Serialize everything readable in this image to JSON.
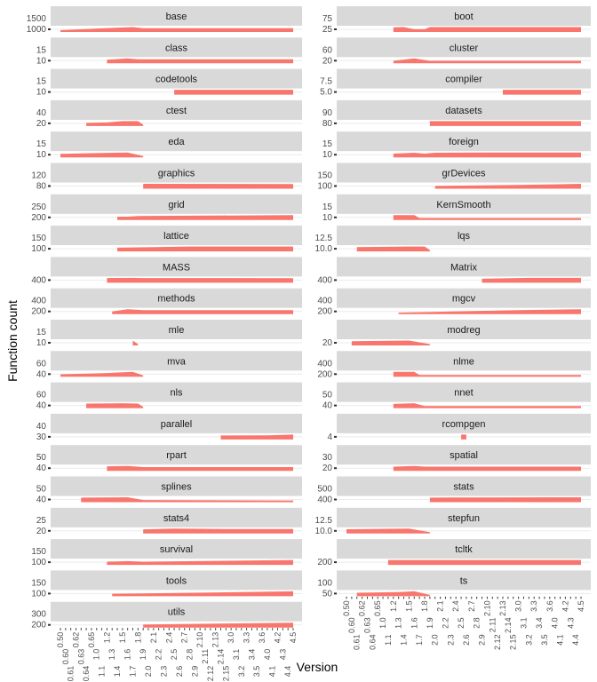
{
  "chart_data": {
    "type": "area",
    "xlabel": "Version",
    "ylabel": "Function count",
    "fill_color": "#F8766D",
    "strip_color": "#D9D9D9",
    "facet_layout": "2 columns, free y scales",
    "versions": [
      "0.50",
      "0.60",
      "0.61",
      "0.62",
      "0.63",
      "0.64",
      "0.65",
      "1.0",
      "1.1",
      "1.2",
      "1.3",
      "1.4",
      "1.5",
      "1.6",
      "1.7",
      "1.8",
      "1.9",
      "2.0",
      "2.1",
      "2.2",
      "2.3",
      "2.4",
      "2.5",
      "2.6",
      "2.7",
      "2.8",
      "2.9",
      "2.10",
      "2.11",
      "2.12",
      "2.13",
      "2.14",
      "2.15",
      "3.0",
      "3.1",
      "3.2",
      "3.3",
      "3.4",
      "3.5",
      "3.6",
      "4.0",
      "4.1",
      "4.2",
      "4.3",
      "4.4",
      "4.5"
    ],
    "panels": [
      {
        "name": "base",
        "yticks": [
          "1000",
          "1500"
        ],
        "points": [
          [
            "0.50",
            200
          ],
          [
            "1.0",
            900
          ],
          [
            "1.7",
            1500
          ],
          [
            "1.9",
            1000
          ],
          [
            "4.5",
            1050
          ]
        ]
      },
      {
        "name": "class",
        "yticks": [
          "10",
          "15"
        ],
        "points": [
          [
            "1.2",
            10
          ],
          [
            "1.6",
            16
          ],
          [
            "1.8",
            12
          ],
          [
            "4.5",
            12
          ]
        ]
      },
      {
        "name": "codetools",
        "yticks": [
          "10",
          "15"
        ],
        "points": [
          [
            "2.5",
            15
          ],
          [
            "4.5",
            15
          ]
        ]
      },
      {
        "name": "ctest",
        "yticks": [
          "20",
          "40"
        ],
        "points": [
          [
            "0.64",
            20
          ],
          [
            "1.2",
            25
          ],
          [
            "1.5",
            40
          ],
          [
            "1.8",
            40
          ],
          [
            "1.9",
            0
          ]
        ]
      },
      {
        "name": "eda",
        "yticks": [
          "10",
          "15"
        ],
        "points": [
          [
            "0.50",
            10
          ],
          [
            "1.0",
            13
          ],
          [
            "1.6",
            16
          ],
          [
            "1.9",
            0
          ]
        ]
      },
      {
        "name": "graphics",
        "yticks": [
          "80",
          "120"
        ],
        "points": [
          [
            "1.9",
            90
          ],
          [
            "4.5",
            85
          ]
        ]
      },
      {
        "name": "grid",
        "yticks": [
          "200",
          "250"
        ],
        "points": [
          [
            "1.4",
            150
          ],
          [
            "1.6",
            150
          ],
          [
            "1.8",
            200
          ],
          [
            "4.5",
            260
          ]
        ]
      },
      {
        "name": "lattice",
        "yticks": [
          "100",
          "150"
        ],
        "points": [
          [
            "1.4",
            100
          ],
          [
            "2.0",
            120
          ],
          [
            "2.8",
            150
          ],
          [
            "4.5",
            150
          ]
        ]
      },
      {
        "name": "MASS",
        "yticks": [
          "400"
        ],
        "points": [
          [
            "1.2",
            400
          ],
          [
            "1.7",
            420
          ],
          [
            "1.9",
            400
          ],
          [
            "4.5",
            390
          ]
        ]
      },
      {
        "name": "methods",
        "yticks": [
          "200",
          "400"
        ],
        "points": [
          [
            "1.3",
            150
          ],
          [
            "1.6",
            400
          ],
          [
            "1.9",
            300
          ],
          [
            "4.5",
            300
          ]
        ]
      },
      {
        "name": "mle",
        "yticks": [
          "10",
          "15"
        ],
        "points": [
          [
            "1.7",
            15
          ],
          [
            "1.8",
            0
          ]
        ]
      },
      {
        "name": "mva",
        "yticks": [
          "40",
          "60"
        ],
        "points": [
          [
            "0.50",
            20
          ],
          [
            "1.2",
            40
          ],
          [
            "1.7",
            60
          ],
          [
            "1.9",
            0
          ]
        ]
      },
      {
        "name": "nls",
        "yticks": [
          "40",
          "60"
        ],
        "points": [
          [
            "0.64",
            40
          ],
          [
            "1.5",
            45
          ],
          [
            "1.8",
            40
          ],
          [
            "1.9",
            0
          ]
        ]
      },
      {
        "name": "parallel",
        "yticks": [
          "30",
          "40"
        ],
        "points": [
          [
            "2.14",
            30
          ],
          [
            "4.0",
            32
          ],
          [
            "4.5",
            40
          ]
        ]
      },
      {
        "name": "rpart",
        "yticks": [
          "40",
          "50"
        ],
        "points": [
          [
            "1.2",
            40
          ],
          [
            "1.6",
            45
          ],
          [
            "1.9",
            30
          ],
          [
            "4.5",
            30
          ]
        ]
      },
      {
        "name": "splines",
        "yticks": [
          "40",
          "50"
        ],
        "points": [
          [
            "0.63",
            40
          ],
          [
            "1.6",
            45
          ],
          [
            "1.9",
            10
          ],
          [
            "4.5",
            5
          ]
        ]
      },
      {
        "name": "stats4",
        "yticks": [
          "20",
          "25"
        ],
        "points": [
          [
            "1.9",
            20
          ],
          [
            "2.5",
            25
          ],
          [
            "3.0",
            22
          ],
          [
            "4.5",
            22
          ]
        ]
      },
      {
        "name": "survival",
        "yticks": [
          "100",
          "150"
        ],
        "points": [
          [
            "1.2",
            80
          ],
          [
            "1.6",
            100
          ],
          [
            "1.9",
            80
          ],
          [
            "4.5",
            150
          ]
        ]
      },
      {
        "name": "tools",
        "yticks": [
          "100",
          "150"
        ],
        "points": [
          [
            "1.3",
            50
          ],
          [
            "1.9",
            60
          ],
          [
            "4.5",
            150
          ]
        ]
      },
      {
        "name": "utils",
        "yticks": [
          "200",
          "300"
        ],
        "points": [
          [
            "1.9",
            150
          ],
          [
            "4.5",
            300
          ]
        ]
      },
      {
        "name": "boot",
        "yticks": [
          "25",
          "75"
        ],
        "points": [
          [
            "1.2",
            70
          ],
          [
            "1.4",
            75
          ],
          [
            "1.6",
            30
          ],
          [
            "1.8",
            30
          ],
          [
            "1.9",
            75
          ],
          [
            "4.5",
            75
          ]
        ]
      },
      {
        "name": "cluster",
        "yticks": [
          "20",
          "60"
        ],
        "points": [
          [
            "1.2",
            20
          ],
          [
            "1.6",
            60
          ],
          [
            "1.9",
            20
          ],
          [
            "4.5",
            20
          ]
        ]
      },
      {
        "name": "compiler",
        "yticks": [
          "5.0",
          "7.5"
        ],
        "points": [
          [
            "2.13",
            7
          ],
          [
            "4.5",
            7
          ]
        ]
      },
      {
        "name": "datasets",
        "yticks": [
          "80",
          "90"
        ],
        "points": [
          [
            "1.9",
            90
          ],
          [
            "4.5",
            90
          ]
        ]
      },
      {
        "name": "foreign",
        "yticks": [
          "10",
          "15"
        ],
        "points": [
          [
            "1.2",
            10
          ],
          [
            "1.6",
            14
          ],
          [
            "1.8",
            10
          ],
          [
            "2.0",
            14
          ],
          [
            "2.10",
            15
          ],
          [
            "4.5",
            15
          ]
        ]
      },
      {
        "name": "grDevices",
        "yticks": [
          "100",
          "150"
        ],
        "points": [
          [
            "2.0",
            60
          ],
          [
            "3.0",
            100
          ],
          [
            "4.5",
            150
          ]
        ]
      },
      {
        "name": "KernSmooth",
        "yticks": [
          "10",
          "15"
        ],
        "points": [
          [
            "1.2",
            15
          ],
          [
            "1.6",
            15
          ],
          [
            "1.7",
            3
          ],
          [
            "4.5",
            3
          ]
        ]
      },
      {
        "name": "lqs",
        "yticks": [
          "10.0",
          "12.5"
        ],
        "points": [
          [
            "0.61",
            10
          ],
          [
            "1.5",
            12
          ],
          [
            "1.8",
            12
          ],
          [
            "1.9",
            0
          ]
        ]
      },
      {
        "name": "Matrix",
        "yticks": [
          "400"
        ],
        "points": [
          [
            "2.9",
            300
          ],
          [
            "3.2",
            400
          ],
          [
            "4.5",
            400
          ]
        ]
      },
      {
        "name": "mgcv",
        "yticks": [
          "200",
          "400"
        ],
        "points": [
          [
            "1.3",
            20
          ],
          [
            "2.0",
            100
          ],
          [
            "3.0",
            300
          ],
          [
            "4.5",
            400
          ]
        ]
      },
      {
        "name": "modreg",
        "yticks": [
          "20"
        ],
        "points": [
          [
            "0.60",
            20
          ],
          [
            "1.5",
            25
          ],
          [
            "1.9",
            0
          ]
        ]
      },
      {
        "name": "nlme",
        "yticks": [
          "200",
          "400"
        ],
        "points": [
          [
            "1.2",
            400
          ],
          [
            "1.6",
            400
          ],
          [
            "1.7",
            50
          ],
          [
            "4.5",
            50
          ]
        ]
      },
      {
        "name": "nnet",
        "yticks": [
          "40",
          "50"
        ],
        "points": [
          [
            "1.2",
            40
          ],
          [
            "1.6",
            50
          ],
          [
            "1.8",
            10
          ],
          [
            "4.5",
            10
          ]
        ]
      },
      {
        "name": "rcompgen",
        "yticks": [
          "4"
        ],
        "points": [
          [
            "2.5",
            4
          ],
          [
            "2.6",
            4
          ]
        ]
      },
      {
        "name": "spatial",
        "yticks": [
          "20",
          "30"
        ],
        "points": [
          [
            "1.2",
            20
          ],
          [
            "1.6",
            25
          ],
          [
            "1.8",
            20
          ],
          [
            "4.5",
            20
          ]
        ]
      },
      {
        "name": "stats",
        "yticks": [
          "400",
          "500"
        ],
        "points": [
          [
            "1.9",
            450
          ],
          [
            "2.5",
            480
          ],
          [
            "4.5",
            500
          ]
        ]
      },
      {
        "name": "stepfun",
        "yticks": [
          "10.0",
          "12.5"
        ],
        "points": [
          [
            "0.50",
            10
          ],
          [
            "1.5",
            12
          ],
          [
            "1.9",
            0
          ]
        ]
      },
      {
        "name": "tcltk",
        "yticks": [
          "200"
        ],
        "points": [
          [
            "1.1",
            200
          ],
          [
            "4.5",
            200
          ]
        ]
      },
      {
        "name": "ts",
        "yticks": [
          "50",
          "100"
        ],
        "points": [
          [
            "0.61",
            60
          ],
          [
            "1.3",
            80
          ],
          [
            "1.6",
            100
          ],
          [
            "1.9",
            0
          ]
        ]
      }
    ]
  }
}
